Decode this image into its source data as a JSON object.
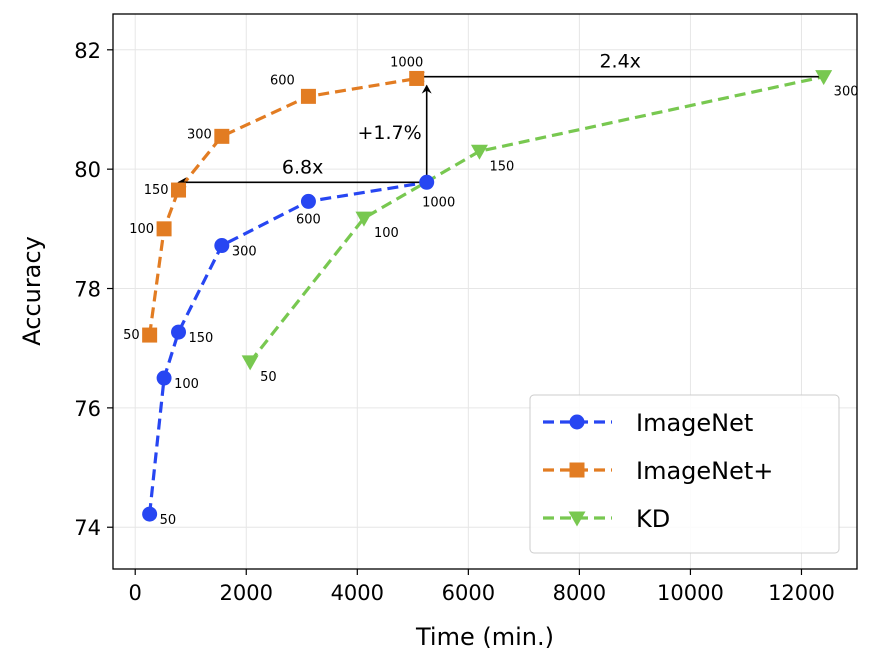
{
  "chart_data": {
    "type": "line",
    "xlabel": "Time (min.)",
    "ylabel": "Accuracy",
    "xlim": [
      -400,
      13000
    ],
    "ylim": [
      73.3,
      82.6
    ],
    "xticks": [
      0,
      2000,
      4000,
      6000,
      8000,
      10000,
      12000
    ],
    "xtick_labels": [
      "0",
      "2000",
      "4000",
      "6000",
      "8000",
      "10000",
      "12000"
    ],
    "yticks": [
      74,
      76,
      78,
      80,
      82
    ],
    "ytick_labels": [
      "74",
      "76",
      "78",
      "80",
      "82"
    ],
    "grid": true,
    "legend_position": "lower-right",
    "series": [
      {
        "name": "ImageNet",
        "color": "#2746f2",
        "marker": "circle",
        "line_style": "dashed",
        "points": [
          {
            "x": 260,
            "y": 74.22,
            "label": "50"
          },
          {
            "x": 520,
            "y": 76.5,
            "label": "100"
          },
          {
            "x": 780,
            "y": 77.27,
            "label": "150"
          },
          {
            "x": 1560,
            "y": 78.72,
            "label": "300"
          },
          {
            "x": 3120,
            "y": 79.46,
            "label": "600"
          },
          {
            "x": 5250,
            "y": 79.78,
            "label": "1000"
          }
        ]
      },
      {
        "name": "ImageNet+",
        "color": "#e27c22",
        "marker": "square",
        "line_style": "dashed",
        "points": [
          {
            "x": 260,
            "y": 77.22,
            "label": "50"
          },
          {
            "x": 520,
            "y": 79.0,
            "label": "100"
          },
          {
            "x": 780,
            "y": 79.65,
            "label": "150"
          },
          {
            "x": 1560,
            "y": 80.55,
            "label": "300"
          },
          {
            "x": 3120,
            "y": 81.22,
            "label": "600"
          },
          {
            "x": 5070,
            "y": 81.52,
            "label": "1000"
          }
        ]
      },
      {
        "name": "KD",
        "color": "#78c850",
        "marker": "triangle-down",
        "line_style": "dashed",
        "points": [
          {
            "x": 2070,
            "y": 76.77,
            "label": "50"
          },
          {
            "x": 4120,
            "y": 79.18,
            "label": "100"
          },
          {
            "x": 6200,
            "y": 80.3,
            "label": "150"
          },
          {
            "x": 12400,
            "y": 81.55,
            "label": "300"
          }
        ]
      }
    ],
    "annotations": [
      {
        "text": "6.8x",
        "from": {
          "x": 5250,
          "y": 79.78
        },
        "to": {
          "x": 780,
          "y": 79.78
        },
        "type": "arrow"
      },
      {
        "text": "+1.7%",
        "from": {
          "x": 5250,
          "y": 79.78
        },
        "to": {
          "x": 5250,
          "y": 81.4
        },
        "type": "arrow"
      },
      {
        "text": "2.4x",
        "from": {
          "x": 12400,
          "y": 81.55
        },
        "to": {
          "x": 5070,
          "y": 81.55
        },
        "type": "arrow"
      }
    ]
  }
}
